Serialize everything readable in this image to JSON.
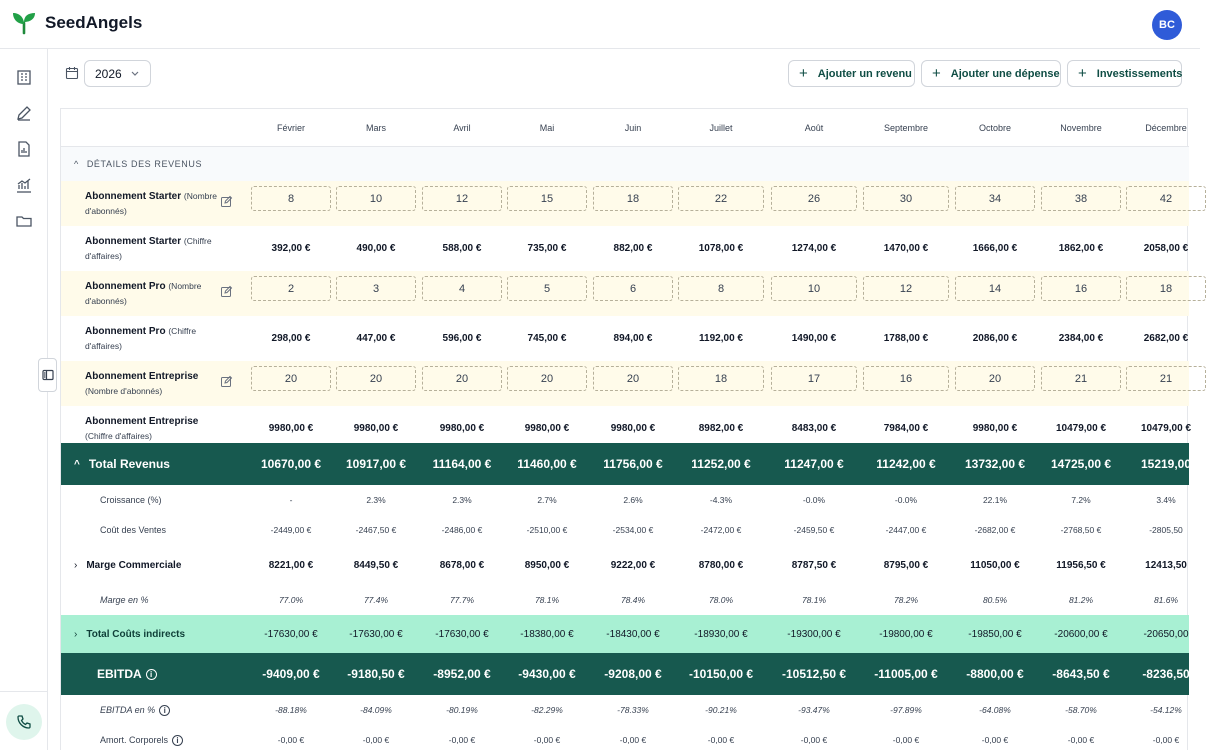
{
  "app": {
    "name": "SeedAngels",
    "user_initials": "BC"
  },
  "toolbar": {
    "year": "2026",
    "add_revenue": "Ajouter un revenu",
    "add_expense": "Ajouter une dépense",
    "investments": "Investissements"
  },
  "table": {
    "months": [
      "Février",
      "Mars",
      "Avril",
      "Mai",
      "Juin",
      "Juillet",
      "Août",
      "Septembre",
      "Octobre",
      "Novembre",
      "Décembre"
    ],
    "section_title": "DÉTAILS DES REVENUS",
    "rows": [
      {
        "kind": "qty",
        "label": "Abonnement Starter",
        "sub": "(Nombre d'abonnés)",
        "values": [
          "8",
          "10",
          "12",
          "15",
          "18",
          "22",
          "26",
          "30",
          "34",
          "38",
          "42"
        ]
      },
      {
        "kind": "rev",
        "label": "Abonnement Starter",
        "sub": "(Chiffre d'affaires)",
        "values": [
          "392,00 €",
          "490,00 €",
          "588,00 €",
          "735,00 €",
          "882,00 €",
          "1078,00 €",
          "1274,00 €",
          "1470,00 €",
          "1666,00 €",
          "1862,00 €",
          "2058,00 €"
        ]
      },
      {
        "kind": "qty",
        "label": "Abonnement Pro",
        "sub": "(Nombre d'abonnés)",
        "values": [
          "2",
          "3",
          "4",
          "5",
          "6",
          "8",
          "10",
          "12",
          "14",
          "16",
          "18"
        ]
      },
      {
        "kind": "rev",
        "label": "Abonnement Pro",
        "sub": "(Chiffre d'affaires)",
        "values": [
          "298,00 €",
          "447,00 €",
          "596,00 €",
          "745,00 €",
          "894,00 €",
          "1192,00 €",
          "1490,00 €",
          "1788,00 €",
          "2086,00 €",
          "2384,00 €",
          "2682,00 €"
        ]
      },
      {
        "kind": "qty",
        "label": "Abonnement Entreprise",
        "sub": "(Nombre d'abonnés)",
        "values": [
          "20",
          "20",
          "20",
          "20",
          "20",
          "18",
          "17",
          "16",
          "20",
          "21",
          "21"
        ]
      },
      {
        "kind": "rev",
        "label": "Abonnement Entreprise",
        "sub": "(Chiffre d'affaires)",
        "values": [
          "9980,00 €",
          "9980,00 €",
          "9980,00 €",
          "9980,00 €",
          "9980,00 €",
          "8982,00 €",
          "8483,00 €",
          "7984,00 €",
          "9980,00 €",
          "10479,00 €",
          "10479,00 €"
        ]
      }
    ],
    "total_revenue": {
      "label": "Total Revenus",
      "values": [
        "10670,00 €",
        "10917,00 €",
        "11164,00 €",
        "11460,00 €",
        "11756,00 €",
        "11252,00 €",
        "11247,00 €",
        "11242,00 €",
        "13732,00 €",
        "14725,00 €",
        "15219,00"
      ]
    },
    "growth": {
      "label": "Croissance (%)",
      "values": [
        "-",
        "2.3%",
        "2.3%",
        "2.7%",
        "2.6%",
        "-4.3%",
        "-0.0%",
        "-0.0%",
        "22.1%",
        "7.2%",
        "3.4%"
      ]
    },
    "cost_of_sales": {
      "label": "Coût des Ventes",
      "values": [
        "-2449,00 €",
        "-2467,50 €",
        "-2486,00 €",
        "-2510,00 €",
        "-2534,00 €",
        "-2472,00 €",
        "-2459,50 €",
        "-2447,00 €",
        "-2682,00 €",
        "-2768,50 €",
        "-2805,50"
      ]
    },
    "gross_margin": {
      "label": "Marge Commerciale",
      "values": [
        "8221,00 €",
        "8449,50 €",
        "8678,00 €",
        "8950,00 €",
        "9222,00 €",
        "8780,00 €",
        "8787,50 €",
        "8795,00 €",
        "11050,00 €",
        "11956,50 €",
        "12413,50"
      ]
    },
    "margin_pct": {
      "label": "Marge en %",
      "values": [
        "77.0%",
        "77.4%",
        "77.7%",
        "78.1%",
        "78.4%",
        "78.0%",
        "78.1%",
        "78.2%",
        "80.5%",
        "81.2%",
        "81.6%"
      ]
    },
    "indirect_costs": {
      "label": "Total Coûts indirects",
      "values": [
        "-17630,00 €",
        "-17630,00 €",
        "-17630,00 €",
        "-18380,00 €",
        "-18430,00 €",
        "-18930,00 €",
        "-19300,00 €",
        "-19800,00 €",
        "-19850,00 €",
        "-20600,00 €",
        "-20650,00"
      ]
    },
    "ebitda": {
      "label": "EBITDA",
      "values": [
        "-9409,00 €",
        "-9180,50 €",
        "-8952,00 €",
        "-9430,00 €",
        "-9208,00 €",
        "-10150,00 €",
        "-10512,50 €",
        "-11005,00 €",
        "-8800,00 €",
        "-8643,50 €",
        "-8236,50"
      ]
    },
    "ebitda_pct": {
      "label": "EBITDA en %",
      "values": [
        "-88.18%",
        "-84.09%",
        "-80.19%",
        "-82.29%",
        "-78.33%",
        "-90.21%",
        "-93.47%",
        "-97.89%",
        "-64.08%",
        "-58.70%",
        "-54.12%"
      ]
    },
    "amort": {
      "label": "Amort. Corporels",
      "values": [
        "-0,00 €",
        "-0,00 €",
        "-0,00 €",
        "-0,00 €",
        "-0,00 €",
        "-0,00 €",
        "-0,00 €",
        "-0,00 €",
        "-0,00 €",
        "-0,00 €",
        "-0,00 €"
      ]
    }
  },
  "colors": {
    "brand": "#0f4d44",
    "total_row": "#17594f",
    "indirect_row": "#a8f0d3",
    "qty_row": "#fffbea",
    "avatar": "#2f5bd8"
  },
  "icons": {
    "sidebar": [
      "building-icon",
      "pencil-icon",
      "document-icon",
      "chart-icon",
      "folder-icon"
    ],
    "bottom": "phone-icon"
  }
}
